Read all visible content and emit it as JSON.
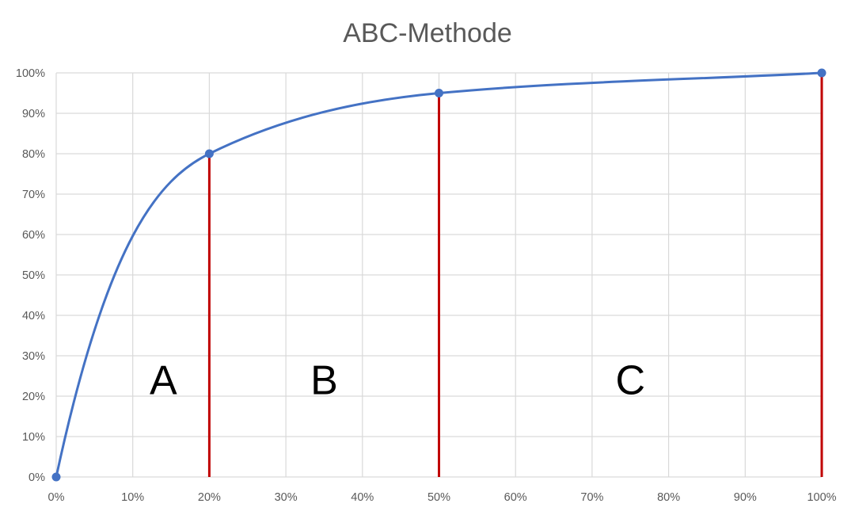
{
  "chart_data": {
    "type": "line",
    "title": "ABC-Methode",
    "xlabel": "",
    "ylabel": "",
    "xlim": [
      0,
      100
    ],
    "ylim": [
      0,
      100
    ],
    "x_ticks": [
      "0%",
      "10%",
      "20%",
      "30%",
      "40%",
      "50%",
      "60%",
      "70%",
      "80%",
      "90%",
      "100%"
    ],
    "y_ticks": [
      "0%",
      "10%",
      "20%",
      "30%",
      "40%",
      "50%",
      "60%",
      "70%",
      "80%",
      "90%",
      "100%"
    ],
    "grid": true,
    "series": [
      {
        "points": [
          {
            "x": 0,
            "y": 0
          },
          {
            "x": 20,
            "y": 80
          },
          {
            "x": 50,
            "y": 95
          },
          {
            "x": 100,
            "y": 100
          }
        ]
      }
    ],
    "boundaries": [
      20,
      50,
      100
    ],
    "zone_labels": [
      {
        "label": "A",
        "x": 14
      },
      {
        "label": "B",
        "x": 35
      },
      {
        "label": "C",
        "x": 75
      }
    ],
    "zone_label_y": 24,
    "colors": {
      "line": "#4472C4",
      "boundary": "#C00000",
      "grid": "#D9D9D9",
      "text": "#595959"
    }
  }
}
